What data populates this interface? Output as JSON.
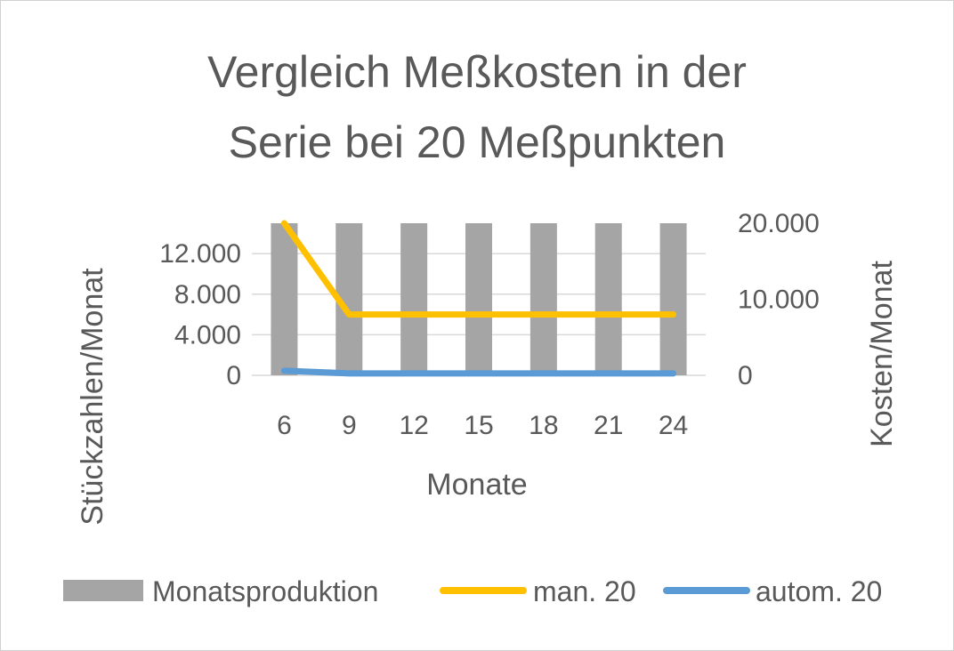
{
  "chart_data": {
    "type": "bar+line",
    "title_lines": [
      "Vergleich Meßkosten in der",
      "Serie bei 20 Meßpunkten"
    ],
    "xlabel": "Monate",
    "ylabel_left": "Stückzahlen/Monat",
    "ylabel_right": "Kosten/Monat",
    "categories": [
      "6",
      "9",
      "12",
      "15",
      "18",
      "21",
      "24"
    ],
    "y_left": {
      "ticks": [
        0,
        4000,
        8000,
        12000
      ],
      "tick_labels": [
        "0",
        "4.000",
        "8.000",
        "12.000"
      ],
      "ylim": [
        0,
        15000
      ]
    },
    "y_right": {
      "ticks": [
        0,
        10000,
        20000
      ],
      "tick_labels": [
        "0",
        "10.000",
        "20.000"
      ],
      "ylim": [
        0,
        20000
      ]
    },
    "grid": true,
    "legend_position": "bottom",
    "series": [
      {
        "name": "Monatsproduktion",
        "kind": "bar",
        "axis": "left",
        "color": "#a5a5a5",
        "values": [
          15000,
          15000,
          15000,
          15000,
          15000,
          15000,
          15000
        ]
      },
      {
        "name": "man. 20",
        "kind": "line",
        "axis": "right",
        "color": "#ffc000",
        "values": [
          20000,
          8000,
          8000,
          8000,
          8000,
          8000,
          8000
        ]
      },
      {
        "name": "autom. 20",
        "kind": "line",
        "axis": "right",
        "color": "#5b9bd5",
        "values": [
          600,
          250,
          250,
          250,
          250,
          250,
          250
        ]
      }
    ]
  }
}
